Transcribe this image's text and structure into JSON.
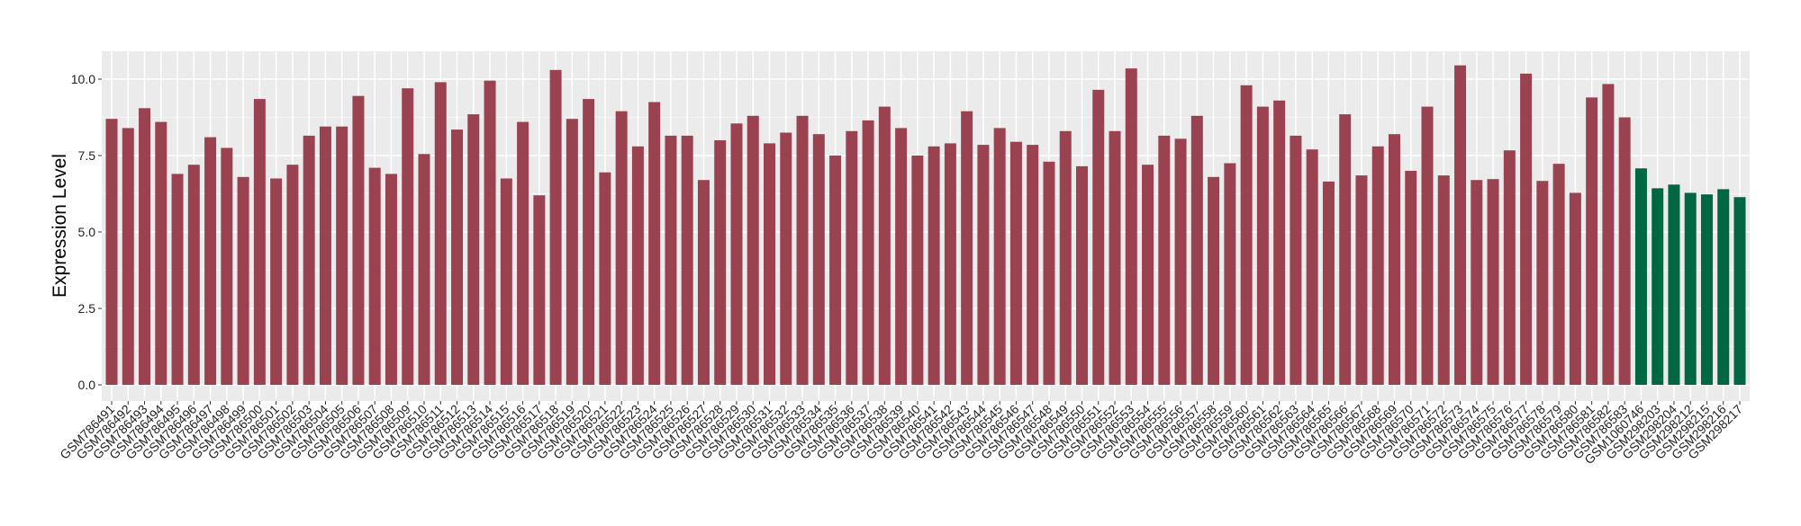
{
  "chart_data": {
    "type": "bar",
    "title": "",
    "xlabel": "",
    "ylabel": "Expression Level",
    "ylim": [
      -0.5,
      10.9
    ],
    "yticks": [
      "0.0",
      "2.5",
      "5.0",
      "7.5",
      "10.0"
    ],
    "ytick_values": [
      0,
      2.5,
      5,
      7.5,
      10
    ],
    "grid": true,
    "legend": "none",
    "colors": {
      "group1": "#9B4251",
      "group2": "#006743",
      "panel": "#EBEBEB",
      "grid": "#FFFFFF"
    },
    "categories": [
      "GSM786491",
      "GSM786492",
      "GSM786493",
      "GSM786494",
      "GSM786495",
      "GSM786496",
      "GSM786497",
      "GSM786498",
      "GSM786499",
      "GSM786500",
      "GSM786501",
      "GSM786502",
      "GSM786503",
      "GSM786504",
      "GSM786505",
      "GSM786506",
      "GSM786507",
      "GSM786508",
      "GSM786509",
      "GSM786510",
      "GSM786511",
      "GSM786512",
      "GSM786513",
      "GSM786514",
      "GSM786515",
      "GSM786516",
      "GSM786517",
      "GSM786518",
      "GSM786519",
      "GSM786520",
      "GSM786521",
      "GSM786522",
      "GSM786523",
      "GSM786524",
      "GSM786525",
      "GSM786526",
      "GSM786527",
      "GSM786528",
      "GSM786529",
      "GSM786530",
      "GSM786531",
      "GSM786532",
      "GSM786533",
      "GSM786534",
      "GSM786535",
      "GSM786536",
      "GSM786537",
      "GSM786538",
      "GSM786539",
      "GSM786540",
      "GSM786541",
      "GSM786542",
      "GSM786543",
      "GSM786544",
      "GSM786545",
      "GSM786546",
      "GSM786547",
      "GSM786548",
      "GSM786549",
      "GSM786550",
      "GSM786551",
      "GSM786552",
      "GSM786553",
      "GSM786554",
      "GSM786555",
      "GSM786556",
      "GSM786557",
      "GSM786558",
      "GSM786559",
      "GSM786560",
      "GSM786561",
      "GSM786562",
      "GSM786563",
      "GSM786564",
      "GSM786565",
      "GSM786566",
      "GSM786567",
      "GSM786568",
      "GSM786569",
      "GSM786570",
      "GSM786571",
      "GSM786572",
      "GSM786573",
      "GSM786574",
      "GSM786575",
      "GSM786576",
      "GSM786577",
      "GSM786578",
      "GSM786579",
      "GSM786580",
      "GSM786581",
      "GSM786582",
      "GSM786583",
      "GSM1060746",
      "GSM298203",
      "GSM298204",
      "GSM298212",
      "GSM298215",
      "GSM298216",
      "GSM298217"
    ],
    "values": [
      8.7,
      8.4,
      9.05,
      8.6,
      6.9,
      7.2,
      8.1,
      7.75,
      6.8,
      9.35,
      6.75,
      7.2,
      8.15,
      8.45,
      8.45,
      9.45,
      7.1,
      6.9,
      9.7,
      7.55,
      9.9,
      8.35,
      8.85,
      9.95,
      6.75,
      8.6,
      6.2,
      10.3,
      8.7,
      9.35,
      6.95,
      8.95,
      7.8,
      9.25,
      8.15,
      8.15,
      6.7,
      8.0,
      8.55,
      8.8,
      7.9,
      8.25,
      8.8,
      8.2,
      7.5,
      8.3,
      8.65,
      9.1,
      8.4,
      7.5,
      7.8,
      7.9,
      8.95,
      7.85,
      8.4,
      7.95,
      7.85,
      7.3,
      8.3,
      7.15,
      9.65,
      8.3,
      10.35,
      7.2,
      8.15,
      8.05,
      8.8,
      6.8,
      7.25,
      9.8,
      9.1,
      9.3,
      8.15,
      7.7,
      6.65,
      8.85,
      6.85,
      7.8,
      8.2,
      7.0,
      9.1,
      6.85,
      10.45,
      6.7,
      6.73,
      7.67,
      10.18,
      6.67,
      7.23,
      6.28,
      9.4,
      9.84,
      8.75,
      7.08,
      6.43,
      6.55,
      6.28,
      6.23,
      6.4,
      6.14
    ],
    "groups": [
      1,
      1,
      1,
      1,
      1,
      1,
      1,
      1,
      1,
      1,
      1,
      1,
      1,
      1,
      1,
      1,
      1,
      1,
      1,
      1,
      1,
      1,
      1,
      1,
      1,
      1,
      1,
      1,
      1,
      1,
      1,
      1,
      1,
      1,
      1,
      1,
      1,
      1,
      1,
      1,
      1,
      1,
      1,
      1,
      1,
      1,
      1,
      1,
      1,
      1,
      1,
      1,
      1,
      1,
      1,
      1,
      1,
      1,
      1,
      1,
      1,
      1,
      1,
      1,
      1,
      1,
      1,
      1,
      1,
      1,
      1,
      1,
      1,
      1,
      1,
      1,
      1,
      1,
      1,
      1,
      1,
      1,
      1,
      1,
      1,
      1,
      1,
      1,
      1,
      1,
      1,
      1,
      1,
      2,
      2,
      2,
      2,
      2,
      2,
      2
    ]
  }
}
